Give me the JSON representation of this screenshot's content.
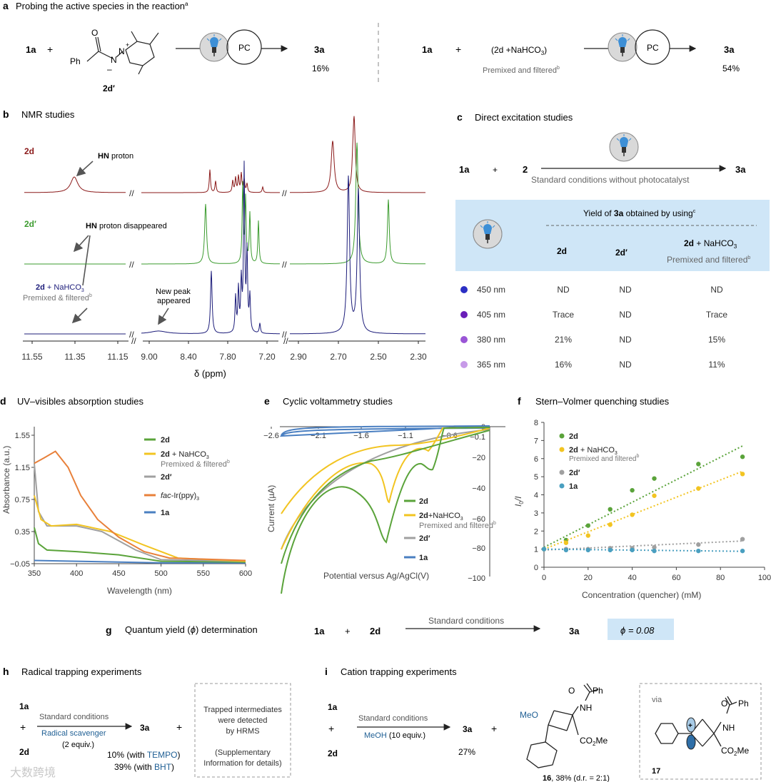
{
  "panel_a": {
    "letter": "a",
    "title": "Probing the active species in the reaction",
    "title_sup": "a",
    "left": {
      "reagent1": "1a",
      "plus": "+",
      "struct_ph": "Ph",
      "struct_o": "O",
      "struct_n": "N",
      "struct_nplus": "N",
      "struct_minus": "–",
      "struct_plus": "+",
      "struct_label": "2d′",
      "pc": "PC",
      "product": "3a",
      "yield": "16%"
    },
    "right": {
      "reagent1": "1a",
      "plus": "+",
      "reagent2": "(2d +NaHCO",
      "reagent2_sub": "3",
      "reagent2_end": ")",
      "note": "Premixed and filtered",
      "note_sup": "b",
      "pc": "PC",
      "product": "3a",
      "yield": "54%"
    }
  },
  "panel_b": {
    "letter": "b",
    "title": "NMR studies",
    "trace_labels": {
      "t1": "2d",
      "t2": "2d′",
      "t3_main": "2d",
      "t3_rest": " + NaHCO",
      "t3_sub": "3",
      "t3_note": "Premixed & filtered",
      "t3_sup": "b"
    },
    "annotations": {
      "hn1_bold": "HN",
      "hn1_rest": " proton",
      "hn2_bold": "HN",
      "hn2_rest": " proton disappeared",
      "newpeak1": "New peak",
      "newpeak2": "appeared"
    },
    "axis_breaks": "//",
    "xlabel": "δ (ppm)",
    "ticks_left": [
      "11.55",
      "11.35",
      "11.15"
    ],
    "ticks_mid": [
      "9.00",
      "8.40",
      "7.80",
      "7.20"
    ],
    "ticks_right": [
      "2.90",
      "2.70",
      "2.50",
      "2.30"
    ]
  },
  "panel_c": {
    "letter": "c",
    "title": "Direct excitation studies",
    "scheme": {
      "r1": "1a",
      "plus": "+",
      "r2": "2",
      "product": "3a",
      "conditions": "Standard conditions without photocatalyst"
    },
    "table": {
      "header_pre": "Yield of ",
      "header_bold": "3a",
      "header_post": " obtained by using",
      "header_sup": "c",
      "col1": "2d",
      "col2": "2d′",
      "col3_bold": "2d",
      "col3_rest": " + NaHCO",
      "col3_sub": "3",
      "col3_note": "Premixed and filtered",
      "col3_sup": "b",
      "rows": [
        {
          "wavelength": "450 nm",
          "color": "#2b2fc4",
          "v1": "ND",
          "v2": "ND",
          "v3": "ND"
        },
        {
          "wavelength": "405 nm",
          "color": "#6a1fb8",
          "v1": "Trace",
          "v2": "ND",
          "v3": "Trace"
        },
        {
          "wavelength": "380 nm",
          "color": "#9a55d6",
          "v1": "21%",
          "v2": "ND",
          "v3": "15%"
        },
        {
          "wavelength": "365 nm",
          "color": "#c79ae8",
          "v1": "16%",
          "v2": "ND",
          "v3": "11%"
        }
      ]
    },
    "header_bg": "#cfe6f7"
  },
  "panel_d": {
    "letter": "d",
    "title": "UV–visibles absorption studies",
    "ylabel": "Absorbance (a.u.)",
    "xlabel": "Wavelength (nm)",
    "xticks": [
      "350",
      "400",
      "450",
      "500",
      "550",
      "600"
    ],
    "yticks": [
      "1.55",
      "1.15",
      "0.75",
      "0.35",
      "−0.05"
    ],
    "legend": [
      {
        "bold": "2d",
        "rest": "",
        "note": "",
        "color": "#5aa33a"
      },
      {
        "bold": "2d",
        "rest": " + NaHCO",
        "sub": "3",
        "note": "Premixed & filtered",
        "sup": "b",
        "color": "#f2c421"
      },
      {
        "bold": "2d′",
        "rest": "",
        "note": "",
        "color": "#a0a0a0"
      },
      {
        "bold": "",
        "italic": "fac",
        "rest": "-Ir(ppy)",
        "sub": "3",
        "note": "",
        "color": "#e8803a"
      },
      {
        "bold": "1a",
        "rest": "",
        "note": "",
        "color": "#4a7fc1"
      }
    ]
  },
  "panel_e": {
    "letter": "e",
    "title": "Cyclic voltammetry studies",
    "ylabel": "Current (µA)",
    "xlabel": "Potential versus Ag/AgCl(V)",
    "xticks": [
      "−2.6",
      "−2.1",
      "−1.6",
      "−1.1",
      "−0.6"
    ],
    "yticks": [
      "0",
      "−0.1",
      "−20",
      "−40",
      "−60",
      "−80",
      "−100"
    ],
    "legend": [
      {
        "bold": "2d",
        "rest": "",
        "color": "#5aa33a"
      },
      {
        "bold": "2d",
        "rest": "+NaHCO",
        "sub": "3",
        "note": "Premixed and filtered",
        "sup": "b",
        "color": "#f2c421"
      },
      {
        "bold": "2d′",
        "rest": "",
        "color": "#a0a0a0"
      },
      {
        "bold": "1a",
        "rest": "",
        "color": "#4a7fc1"
      }
    ]
  },
  "panel_f": {
    "letter": "f",
    "title": "Stern–Volmer quenching studies",
    "ylabel_main": "I",
    "ylabel_sub": "0",
    "ylabel_end": "/I",
    "xlabel": "Concentration (quencher) (mM)",
    "xticks": [
      "0",
      "20",
      "40",
      "60",
      "80",
      "100"
    ],
    "yticks": [
      "0",
      "1",
      "2",
      "3",
      "4",
      "5",
      "6",
      "7",
      "8"
    ],
    "legend": [
      {
        "bold": "2d",
        "rest": "",
        "color": "#5aa33a"
      },
      {
        "bold": "2d",
        "rest": " + NaHCO",
        "sub": "3",
        "note": "Premixed and filtered",
        "sup": "b",
        "color": "#f2c421"
      },
      {
        "bold": "2d′",
        "rest": "",
        "color": "#a0a0a0"
      },
      {
        "bold": "1a",
        "rest": "",
        "color": "#4a9fc0"
      }
    ]
  },
  "panel_g": {
    "letter": "g",
    "title_pre": "Quantum yield (",
    "title_phi": "ϕ",
    "title_post": ") determination",
    "r1": "1a",
    "plus": "+",
    "r2": "2d",
    "conditions": "Standard conditions",
    "product": "3a",
    "result": "ϕ = 0.08",
    "result_bg": "#cfe6f7"
  },
  "panel_h": {
    "letter": "h",
    "title": "Radical trapping experiments",
    "r1": "1a",
    "plus": "+",
    "r2": "2d",
    "cond1": "Standard conditions",
    "cond2": "Radical scavenger",
    "cond3": "(2 equiv.)",
    "product": "3a",
    "plus2": "+",
    "yield1_pre": "10% (with ",
    "yield1_reagent": "TEMPO",
    "yield1_post": ")",
    "yield2_pre": "39% (with ",
    "yield2_reagent": "BHT",
    "yield2_post": ")",
    "box": [
      "Trapped intermediates",
      "were detected",
      "by HRMS",
      "",
      "(Supplementary",
      "Information for details)"
    ]
  },
  "panel_i": {
    "letter": "i",
    "title": "Cation trapping experiments",
    "r1": "1a",
    "plus": "+",
    "r2": "2d",
    "cond1": "Standard conditions",
    "cond2_reagent": "MeOH",
    "cond2_rest": " (10 equiv.)",
    "product": "3a",
    "yield": "27%",
    "plus2": "+",
    "struct16": {
      "o": "O",
      "ph": "Ph",
      "nh": "NH",
      "meo": "MeO",
      "co2me_pre": "CO",
      "co2me_sub": "2",
      "co2me_post": "Me"
    },
    "label16_bold": "16",
    "label16_rest": ", 38% (d.r. = 2:1)",
    "via": "via",
    "struct17": {
      "o": "O",
      "ph": "Ph",
      "nh": "NH",
      "plus": "+",
      "co2me_pre": "CO",
      "co2me_sub": "2",
      "co2me_post": "Me"
    },
    "label17": "17"
  },
  "watermark": "大数跨境"
}
